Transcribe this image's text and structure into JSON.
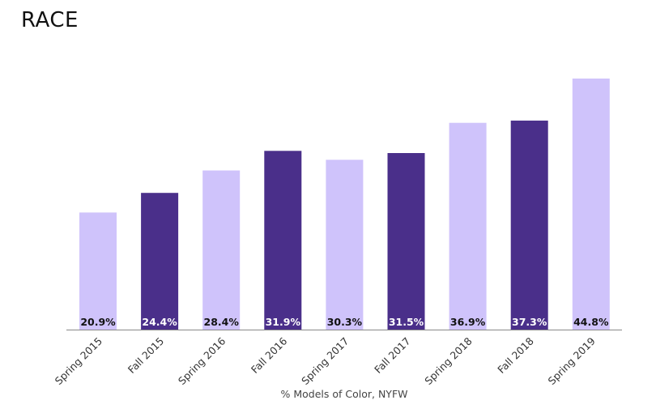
{
  "chart_data": {
    "type": "bar",
    "title": "RACE",
    "xlabel": "% Models of Color, NYFW",
    "ylabel": "",
    "ylim": [
      0,
      44.8
    ],
    "grid": false,
    "legend": "none",
    "categories": [
      "Spring 2015",
      "Fall 2015",
      "Spring 2016",
      "Fall 2016",
      "Spring 2017",
      "Fall 2017",
      "Spring 2018",
      "Fall 2018",
      "Spring 2019"
    ],
    "values": [
      20.9,
      24.4,
      28.4,
      31.9,
      30.3,
      31.5,
      36.9,
      37.3,
      44.8
    ],
    "value_labels": [
      "20.9%",
      "24.4%",
      "28.4%",
      "31.9%",
      "30.3%",
      "31.5%",
      "36.9%",
      "37.3%",
      "44.8%"
    ],
    "bar_colors": [
      "#cfc3fb",
      "#4a2f8a",
      "#cfc3fb",
      "#4a2f8a",
      "#cfc3fb",
      "#4a2f8a",
      "#cfc3fb",
      "#4a2f8a",
      "#cfc3fb"
    ],
    "label_colors": [
      "#111111",
      "#ffffff",
      "#111111",
      "#ffffff",
      "#111111",
      "#ffffff",
      "#111111",
      "#ffffff",
      "#111111"
    ],
    "axis_color": "#888888"
  }
}
